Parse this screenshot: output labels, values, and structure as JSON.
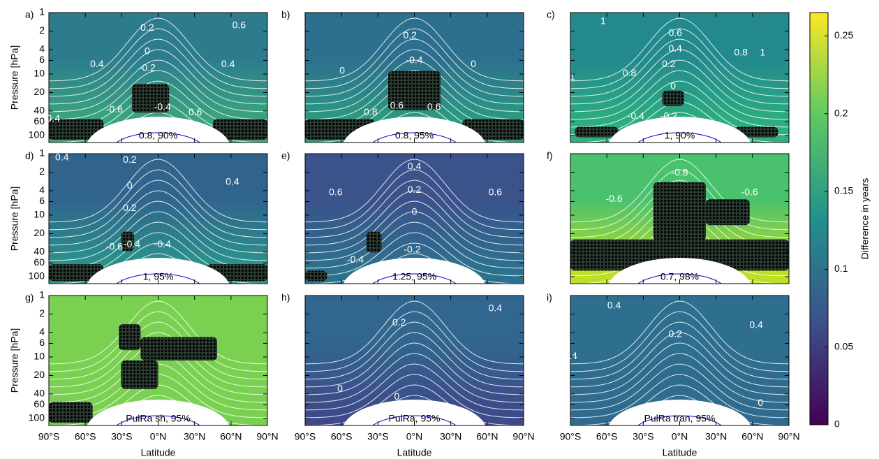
{
  "chart_data": [
    {
      "type": "contour",
      "panel": "a)",
      "annotation": "0.8, 90%",
      "ylabel": "Pressure [hPa]",
      "xlim": [
        -90,
        90
      ],
      "ylim": [
        130,
        1
      ],
      "log_y": true,
      "yticks": [
        1,
        2,
        4,
        6,
        10,
        20,
        40,
        60,
        100
      ],
      "colors": [
        "#2c7c8e",
        "#3dab7a"
      ],
      "stippled": true,
      "contour_labels": [
        "0.2",
        "0.6",
        "0",
        "0.4",
        "0.4",
        "-0.2",
        "-0.6",
        "-0.4",
        "0.6",
        "0.4"
      ]
    },
    {
      "type": "contour",
      "panel": "b)",
      "annotation": "0.8, 95%",
      "xlim": [
        -90,
        90
      ],
      "ylim": [
        130,
        1
      ],
      "log_y": true,
      "colors": [
        "#2d6f8e",
        "#2ba07f"
      ],
      "stippled": true,
      "contour_labels": [
        "0.2",
        "-0.4",
        "0",
        "0",
        "0.8",
        "0.6",
        "0.6"
      ]
    },
    {
      "type": "contour",
      "panel": "c)",
      "annotation": "1, 90%",
      "xlim": [
        -90,
        90
      ],
      "ylim": [
        130,
        1
      ],
      "log_y": true,
      "colors": [
        "#23898d",
        "#2db27d"
      ],
      "stippled": true,
      "contour_labels": [
        "1",
        "0.6",
        "0.4",
        "0.8",
        "1",
        "0.2",
        "0.8",
        "0",
        "-0.4",
        "-0.2",
        "1"
      ]
    },
    {
      "type": "contour",
      "panel": "d)",
      "annotation": "1, 95%",
      "ylabel": "Pressure [hPa]",
      "xlim": [
        -90,
        90
      ],
      "ylim": [
        130,
        1
      ],
      "log_y": true,
      "yticks": [
        1,
        2,
        4,
        6,
        10,
        20,
        40,
        60,
        100
      ],
      "colors": [
        "#30648d",
        "#2a978a"
      ],
      "stippled": true,
      "contour_labels": [
        "0.4",
        "0.2",
        "0.4",
        "0",
        "0.2",
        "-0.6",
        "-0.4",
        "-0.4"
      ]
    },
    {
      "type": "contour",
      "panel": "e)",
      "annotation": "1.25, 95%",
      "xlim": [
        -90,
        90
      ],
      "ylim": [
        130,
        1
      ],
      "log_y": true,
      "colors": [
        "#3b528b",
        "#2c728e"
      ],
      "stippled": true,
      "contour_labels": [
        "0.4",
        "0.6",
        "0.6",
        "0.2",
        "0",
        "-0.4",
        "-0.2"
      ]
    },
    {
      "type": "contour",
      "panel": "f)",
      "annotation": "0.7, 98%",
      "xlim": [
        -90,
        90
      ],
      "ylim": [
        130,
        1
      ],
      "log_y": true,
      "colors": [
        "#4ac16d",
        "#bddf26"
      ],
      "stippled": true,
      "contour_labels": [
        "-0.8",
        "-0.6",
        "-0.6"
      ]
    },
    {
      "type": "contour",
      "panel": "g)",
      "annotation": "PulRa sh, 95%",
      "ylabel": "Pressure [hPa]",
      "xlabel": "Latitude",
      "xlim": [
        -90,
        90
      ],
      "ylim": [
        130,
        1
      ],
      "log_y": true,
      "yticks": [
        1,
        2,
        4,
        6,
        10,
        20,
        40,
        60,
        100
      ],
      "xticks": [
        {
          "value": -90,
          "label": "90°S"
        },
        {
          "value": -60,
          "label": "60°S"
        },
        {
          "value": -30,
          "label": "30°S"
        },
        {
          "value": 0,
          "label": "0°N"
        },
        {
          "value": 30,
          "label": "30°N"
        },
        {
          "value": 60,
          "label": "60°N"
        },
        {
          "value": 90,
          "label": "90°N"
        }
      ],
      "colors": [
        "#7ad151",
        "#7ad151"
      ],
      "stippled": true
    },
    {
      "type": "contour",
      "panel": "h)",
      "annotation": "PulRa, 95%",
      "xlabel": "Latitude",
      "xlim": [
        -90,
        90
      ],
      "ylim": [
        130,
        1
      ],
      "log_y": true,
      "xticks": [
        {
          "value": -90,
          "label": "90°S"
        },
        {
          "value": -60,
          "label": "60°S"
        },
        {
          "value": -30,
          "label": "30°S"
        },
        {
          "value": 0,
          "label": "0°N"
        },
        {
          "value": 30,
          "label": "30°N"
        },
        {
          "value": 60,
          "label": "60°N"
        },
        {
          "value": 90,
          "label": "90°N"
        }
      ],
      "colors": [
        "#31668e",
        "#3e4a89"
      ],
      "stippled": false,
      "contour_labels": [
        "0.4",
        "0.2",
        "0",
        "0"
      ]
    },
    {
      "type": "contour",
      "panel": "i)",
      "annotation": "PulRa tran, 95%",
      "xlabel": "Latitude",
      "xlim": [
        -90,
        90
      ],
      "ylim": [
        130,
        1
      ],
      "log_y": true,
      "xticks": [
        {
          "value": -90,
          "label": "90°S"
        },
        {
          "value": -60,
          "label": "60°S"
        },
        {
          "value": -30,
          "label": "30°S"
        },
        {
          "value": 0,
          "label": "0°N"
        },
        {
          "value": 30,
          "label": "30°N"
        },
        {
          "value": 60,
          "label": "60°N"
        },
        {
          "value": 90,
          "label": "90°N"
        }
      ],
      "colors": [
        "#2e6e8e",
        "#2f6b8e"
      ],
      "stippled": false,
      "contour_labels": [
        "0.4",
        "0.4",
        "0.2",
        "0.4",
        "0",
        "0.2"
      ]
    },
    {
      "type": "colorbar",
      "label": "Difference in years",
      "ylim": [
        0,
        0.265
      ],
      "yticks": [
        0,
        0.05,
        0.1,
        0.15,
        0.2,
        0.25
      ],
      "colors": [
        "#440154",
        "#3b528b",
        "#21918c",
        "#5ec962",
        "#fde725"
      ]
    }
  ]
}
